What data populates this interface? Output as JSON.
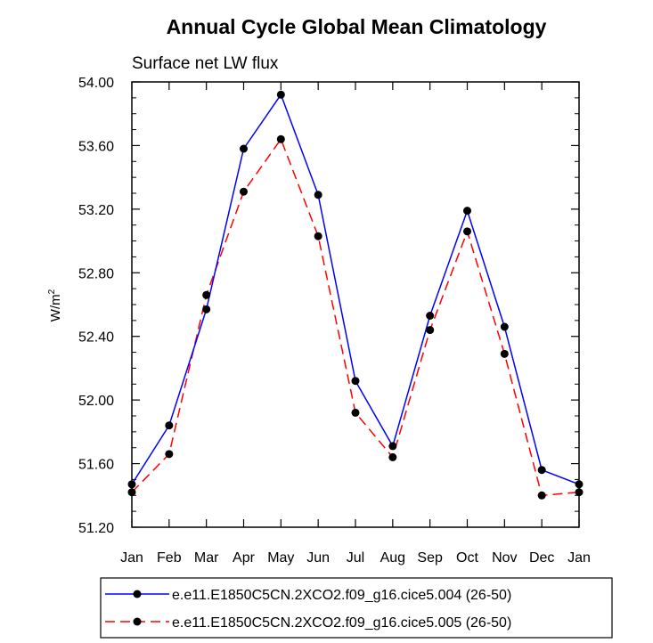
{
  "chart_data": {
    "type": "line",
    "title": "Annual Cycle Global Mean Climatology",
    "subtitle": "Surface net LW flux",
    "xlabel": "",
    "ylabel": "W/m",
    "ylabel_superscript": "2",
    "categories": [
      "Jan",
      "Feb",
      "Mar",
      "Apr",
      "May",
      "Jun",
      "Jul",
      "Aug",
      "Sep",
      "Oct",
      "Nov",
      "Dec",
      "Jan"
    ],
    "ylim": [
      51.2,
      54.0
    ],
    "yticks": [
      51.2,
      51.6,
      52.0,
      52.4,
      52.8,
      53.2,
      53.6,
      54.0
    ],
    "ytick_labels": [
      "51.20",
      "51.60",
      "52.00",
      "52.40",
      "52.80",
      "53.20",
      "53.60",
      "54.00"
    ],
    "grid": false,
    "legend_position": "bottom",
    "series": [
      {
        "name": "e.e11.E1850C5CN.2XCO2.f09_g16.cice5.004 (26-50)",
        "color": "#0000ff",
        "dash": "solid",
        "values": [
          51.47,
          51.84,
          52.57,
          53.58,
          53.92,
          53.29,
          52.12,
          51.71,
          52.53,
          53.19,
          52.46,
          51.56,
          51.47
        ]
      },
      {
        "name": "e.e11.E1850C5CN.2XCO2.f09_g16.cice5.005 (26-50)",
        "color": "#ff0000",
        "dash": "dashed",
        "values": [
          51.42,
          51.66,
          52.66,
          53.31,
          53.64,
          53.03,
          51.92,
          51.64,
          52.44,
          53.06,
          52.29,
          51.4,
          51.42
        ]
      }
    ]
  }
}
